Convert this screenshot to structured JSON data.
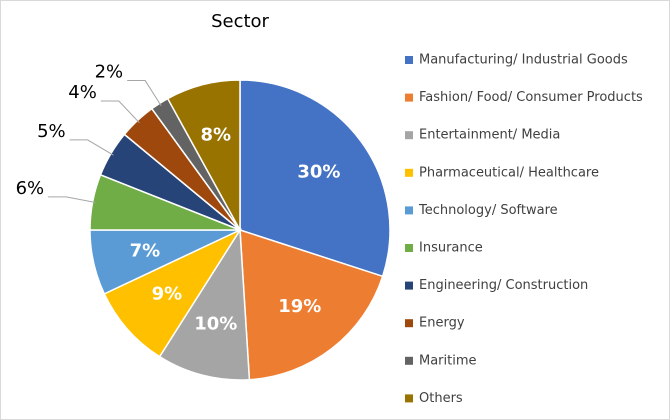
{
  "chart_data": {
    "type": "pie",
    "title": "Sector",
    "categories": [
      "Manufacturing/ Industrial Goods",
      "Fashion/ Food/ Consumer Products",
      "Entertainment/ Media",
      "Pharmaceutical/ Healthcare",
      "Technology/ Software",
      "Insurance",
      "Engineering/ Construction",
      "Energy",
      "Maritime",
      "Others"
    ],
    "values": [
      30,
      19,
      10,
      9,
      7,
      6,
      5,
      4,
      2,
      8
    ],
    "value_labels": [
      "30%",
      "19%",
      "10%",
      "9%",
      "7%",
      "6%",
      "5%",
      "4%",
      "2%",
      "8%"
    ],
    "colors": [
      "#4472c4",
      "#ed7d31",
      "#a5a5a5",
      "#ffc000",
      "#5b9bd5",
      "#70ad47",
      "#264478",
      "#9e480e",
      "#636363",
      "#997300"
    ],
    "legend": "right"
  }
}
